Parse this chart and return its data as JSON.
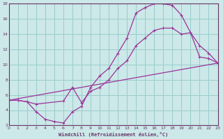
{
  "xlabel": "Windchill (Refroidissement éolien,°C)",
  "bg_color": "#cce8e8",
  "line_color": "#993399",
  "grid_color": "#99cccc",
  "axis_color": "#663366",
  "xlim": [
    0,
    23
  ],
  "ylim": [
    2,
    18
  ],
  "xticks": [
    0,
    1,
    2,
    3,
    4,
    5,
    6,
    7,
    8,
    9,
    10,
    11,
    12,
    13,
    14,
    15,
    16,
    17,
    18,
    19,
    20,
    21,
    22,
    23
  ],
  "yticks": [
    2,
    4,
    6,
    8,
    10,
    12,
    14,
    16,
    18
  ],
  "curve1_x": [
    0,
    1,
    2,
    3,
    4,
    5,
    6,
    7,
    8,
    9,
    10,
    11,
    12,
    13,
    14,
    15,
    16,
    17,
    18,
    19,
    20,
    21,
    22,
    23
  ],
  "curve1_y": [
    5.3,
    5.3,
    5.1,
    3.8,
    2.8,
    2.5,
    2.3,
    3.8,
    4.5,
    7.0,
    8.5,
    9.5,
    11.5,
    13.5,
    16.8,
    17.5,
    18.0,
    18.0,
    17.8,
    16.5,
    14.2,
    11.0,
    10.8,
    10.2
  ],
  "curve2_x": [
    0,
    1,
    2,
    3,
    6,
    7,
    8,
    9,
    10,
    11,
    12,
    13,
    14,
    15,
    16,
    17,
    18,
    19,
    20,
    21,
    22,
    23
  ],
  "curve2_y": [
    5.3,
    5.3,
    5.1,
    4.8,
    5.2,
    7.0,
    5.0,
    6.5,
    7.0,
    8.0,
    9.5,
    10.5,
    12.5,
    13.5,
    14.5,
    14.8,
    14.8,
    14.0,
    14.2,
    12.5,
    11.5,
    10.2
  ],
  "curve3_x": [
    0,
    23
  ],
  "curve3_y": [
    5.3,
    10.2
  ]
}
